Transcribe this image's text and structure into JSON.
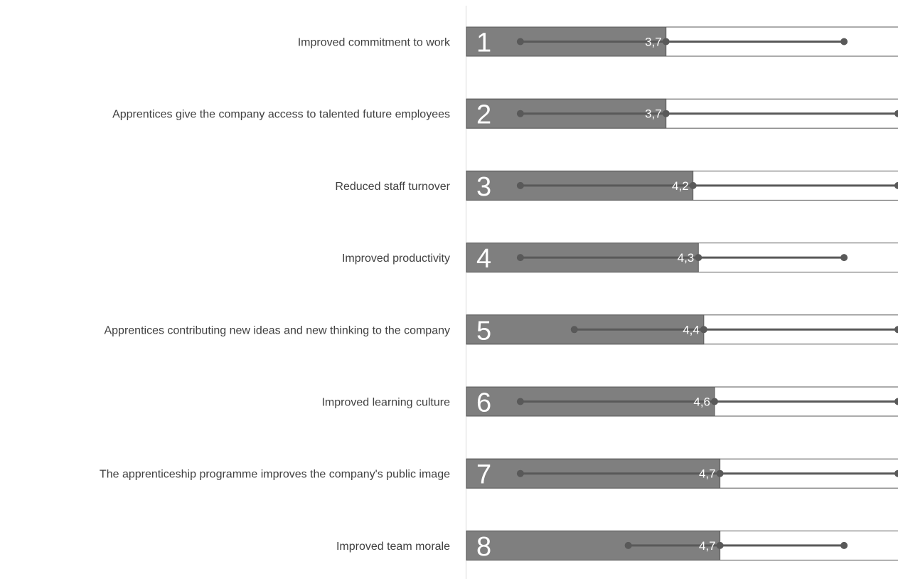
{
  "chart_data": {
    "type": "bar",
    "title": "",
    "xlabel": "",
    "ylabel": "",
    "xlim": [
      0,
      8
    ],
    "grid": false,
    "legend": "none",
    "colors": {
      "bar_fill": "#7f7f7f",
      "bar_border": "#595959",
      "track_fill": "#ffffff",
      "whisker": "#595959",
      "text_light": "#ffffff",
      "text_label": "#404040",
      "axis_line": "#d9d9d9"
    },
    "categories": [
      "Improved commitment to work",
      "Apprentices give the company access to talented future employees",
      "Reduced staff turnover",
      "Improved productivity",
      "Apprentices contributing new ideas and new thinking to the company",
      "Improved learning culture",
      "The apprenticeship programme improves the company's public image",
      "Improved team morale"
    ],
    "ranks": [
      "1",
      "2",
      "3",
      "4",
      "5",
      "6",
      "7",
      "8"
    ],
    "values": [
      3.7,
      3.7,
      4.2,
      4.3,
      4.4,
      4.6,
      4.7,
      4.7
    ],
    "value_labels": [
      "3,7",
      "3,7",
      "4,2",
      "4,3",
      "4,4",
      "4,6",
      "4,7",
      "4,7"
    ],
    "range_min": [
      1,
      1,
      1,
      1,
      2,
      1,
      1,
      3
    ],
    "range_max": [
      7,
      8,
      8,
      7,
      8,
      8,
      8,
      7
    ]
  }
}
